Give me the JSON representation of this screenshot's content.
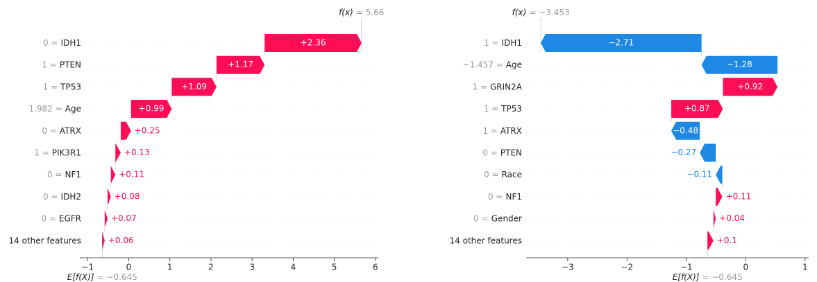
{
  "chart_data": [
    {
      "type": "waterfall",
      "categories": [
        "IDH1",
        "PTEN",
        "TP53",
        "Age",
        "ATRX",
        "PIK3R1",
        "NF1",
        "IDH2",
        "EGFR",
        "14 other features"
      ],
      "feature_values": [
        "0 =",
        "1 =",
        "1 =",
        "1.982 =",
        "0 =",
        "1 =",
        "0 =",
        "0 =",
        "0 =",
        null
      ],
      "values": [
        2.36,
        1.17,
        1.09,
        0.99,
        0.25,
        0.13,
        0.11,
        0.08,
        0.07,
        0.06
      ],
      "value_labels": [
        "+2.36",
        "+1.17",
        "+1.09",
        "+0.99",
        "+0.25",
        "+0.13",
        "+0.11",
        "+0.08",
        "+0.07",
        "+0.06"
      ],
      "base": -0.645,
      "base_label": "E[f(X)]",
      "base_value_label": "= −0.645",
      "fx": 5.66,
      "fx_label": "f(x)",
      "fx_value_label": "= 5.66",
      "xlim": [
        -1.19,
        6.07
      ],
      "xticks": [
        {
          "value": -1,
          "label": "−1"
        },
        0,
        1,
        2,
        3,
        4,
        5,
        6
      ],
      "colors": {
        "positive": "#ff0d57",
        "negative": "#1e88e5"
      }
    },
    {
      "type": "waterfall",
      "categories": [
        "IDH1",
        "Age",
        "GRIN2A",
        "TP53",
        "ATRX",
        "PTEN",
        "Race",
        "NF1",
        "Gender",
        "14 other features"
      ],
      "feature_values": [
        "1 =",
        "−1.457 =",
        "1 =",
        "1 =",
        "1 =",
        "0 =",
        "0 =",
        "0 =",
        "0 =",
        null
      ],
      "values": [
        -2.71,
        -1.28,
        0.92,
        0.87,
        -0.48,
        -0.27,
        -0.11,
        0.11,
        0.04,
        0.1
      ],
      "value_labels": [
        "−2.71",
        "−1.28",
        "+0.92",
        "+0.87",
        "−0.48",
        "−0.27",
        "−0.11",
        "+0.11",
        "+0.04",
        "+0.1"
      ],
      "base": -0.645,
      "base_label": "E[f(X)]",
      "base_value_label": "= −0.645",
      "fx": -3.453,
      "fx_label": "f(x)",
      "fx_value_label": "= −3.453",
      "xlim": [
        -3.7,
        1.06
      ],
      "xticks": [
        {
          "value": -3,
          "label": "−3"
        },
        {
          "value": -2,
          "label": "−2"
        },
        {
          "value": -1,
          "label": "−1"
        },
        0,
        1
      ],
      "colors": {
        "positive": "#ff0d57",
        "negative": "#1e88e5"
      }
    }
  ]
}
